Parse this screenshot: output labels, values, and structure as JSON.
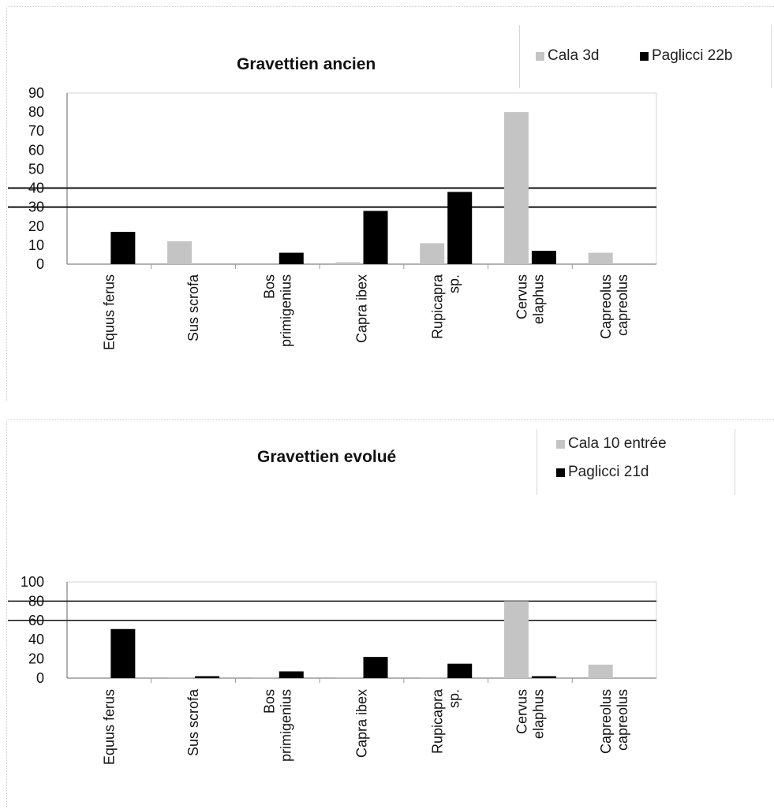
{
  "chart_data": [
    {
      "type": "bar",
      "title": "Gravettien ancien",
      "categories": [
        [
          "Equus ferus"
        ],
        [
          "Sus scrofa"
        ],
        [
          "Bos",
          "primigenius"
        ],
        [
          "Capra ibex"
        ],
        [
          "Rupicapra",
          "sp."
        ],
        [
          "Cervus",
          "elaphus"
        ],
        [
          "Capreolus",
          "capreolus"
        ]
      ],
      "series": [
        {
          "name": "Cala 3d",
          "color": "#c4c4c4",
          "values": [
            0,
            12,
            0,
            1,
            11,
            80,
            6
          ]
        },
        {
          "name": "Paglicci 22b",
          "color": "#000000",
          "values": [
            17,
            0,
            6,
            28,
            38,
            7,
            0
          ]
        }
      ],
      "yticks": [
        0,
        10,
        20,
        30,
        40,
        50,
        60,
        70,
        80,
        90
      ],
      "ylim": [
        0,
        90
      ],
      "reference_lines": [
        30,
        40
      ],
      "legend_position": "top-right",
      "xlabel": "",
      "ylabel": ""
    },
    {
      "type": "bar",
      "title": "Gravettien evolué",
      "categories": [
        [
          "Equus ferus"
        ],
        [
          "Sus scrofa"
        ],
        [
          "Bos",
          "primigenius"
        ],
        [
          "Capra ibex"
        ],
        [
          "Rupicapra",
          "sp."
        ],
        [
          "Cervus",
          "elaphus"
        ],
        [
          "Capreolus",
          "capreolus"
        ]
      ],
      "series": [
        {
          "name": "Cala 10 entrée",
          "color": "#c4c4c4",
          "values": [
            0,
            1,
            1,
            1,
            1,
            80,
            14
          ]
        },
        {
          "name": "Paglicci 21d",
          "color": "#000000",
          "values": [
            51,
            2,
            7,
            22,
            15,
            2,
            0
          ]
        }
      ],
      "yticks": [
        0,
        20,
        40,
        60,
        80,
        100
      ],
      "ylim": [
        0,
        100
      ],
      "reference_lines": [
        60,
        80
      ],
      "legend_position": "top-right",
      "xlabel": "",
      "ylabel": ""
    }
  ]
}
